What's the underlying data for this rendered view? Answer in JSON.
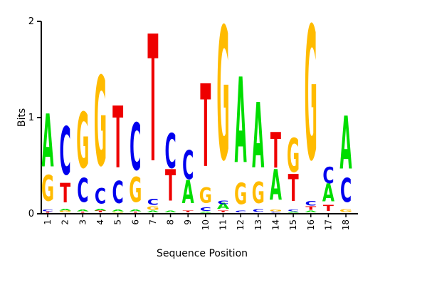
{
  "chart_data": {
    "type": "sequence-logo",
    "xlabel": "Sequence Position",
    "ylabel": "Bits",
    "ylim": [
      0,
      2
    ],
    "yticks": [
      0,
      1,
      2
    ],
    "positions": [
      "1",
      "2",
      "3",
      "4",
      "5",
      "6",
      "7",
      "8",
      "9",
      "10",
      "11",
      "12",
      "13",
      "14",
      "15",
      "16",
      "17",
      "18"
    ],
    "colors": {
      "A": "#00dd00",
      "C": "#0000ee",
      "G": "#ffbb00",
      "T": "#ee0000"
    },
    "stacks": [
      [
        {
          "l": "T",
          "v": 0.01
        },
        {
          "l": "C",
          "v": 0.02
        },
        {
          "l": "G",
          "v": 0.27
        },
        {
          "l": "A",
          "v": 0.55
        }
      ],
      [
        {
          "l": "G",
          "v": 0.02
        },
        {
          "l": "A",
          "v": 0.02
        },
        {
          "l": "T",
          "v": 0.2
        },
        {
          "l": "C",
          "v": 0.5
        }
      ],
      [
        {
          "l": "T",
          "v": 0.01
        },
        {
          "l": "A",
          "v": 0.02
        },
        {
          "l": "C",
          "v": 0.25
        },
        {
          "l": "G",
          "v": 0.58
        }
      ],
      [
        {
          "l": "T",
          "v": 0.02
        },
        {
          "l": "A",
          "v": 0.02
        },
        {
          "l": "C",
          "v": 0.16
        },
        {
          "l": "G",
          "v": 0.93
        }
      ],
      [
        {
          "l": "G",
          "v": 0.01
        },
        {
          "l": "A",
          "v": 0.02
        },
        {
          "l": "C",
          "v": 0.23
        },
        {
          "l": "T",
          "v": 0.64
        }
      ],
      [
        {
          "l": "T",
          "v": 0.01
        },
        {
          "l": "A",
          "v": 0.02
        },
        {
          "l": "G",
          "v": 0.26
        },
        {
          "l": "C",
          "v": 0.49
        }
      ],
      [
        {
          "l": "A",
          "v": 0.02
        },
        {
          "l": "G",
          "v": 0.04
        },
        {
          "l": "C",
          "v": 0.06
        },
        {
          "l": "T",
          "v": 1.32
        }
      ],
      [
        {
          "l": "A",
          "v": 0.02
        },
        {
          "l": "T",
          "v": 0.33
        },
        {
          "l": "C",
          "v": 0.36
        }
      ],
      [
        {
          "l": "T",
          "v": 0.02
        },
        {
          "l": "A",
          "v": 0.24
        },
        {
          "l": "C",
          "v": 0.3
        }
      ],
      [
        {
          "l": "A",
          "v": 0.01
        },
        {
          "l": "C",
          "v": 0.04
        },
        {
          "l": "G",
          "v": 0.16
        },
        {
          "l": "T",
          "v": 0.86
        }
      ],
      [
        {
          "l": "T",
          "v": 0.02
        },
        {
          "l": "A",
          "v": 0.06
        },
        {
          "l": "C",
          "v": 0.04
        },
        {
          "l": "G",
          "v": 1.38
        }
      ],
      [
        {
          "l": "C",
          "v": 0.02
        },
        {
          "l": "G",
          "v": 0.22
        },
        {
          "l": "A",
          "v": 0.89
        }
      ],
      [
        {
          "l": "C",
          "v": 0.03
        },
        {
          "l": "G",
          "v": 0.22
        },
        {
          "l": "A",
          "v": 0.68
        }
      ],
      [
        {
          "l": "C",
          "v": 0.01
        },
        {
          "l": "G",
          "v": 0.02
        },
        {
          "l": "A",
          "v": 0.32
        },
        {
          "l": "T",
          "v": 0.37
        }
      ],
      [
        {
          "l": "A",
          "v": 0.01
        },
        {
          "l": "C",
          "v": 0.02
        },
        {
          "l": "T",
          "v": 0.28
        },
        {
          "l": "G",
          "v": 0.35
        }
      ],
      [
        {
          "l": "A",
          "v": 0.02
        },
        {
          "l": "T",
          "v": 0.04
        },
        {
          "l": "C",
          "v": 0.05
        },
        {
          "l": "G",
          "v": 1.39
        }
      ],
      [
        {
          "l": "T",
          "v": 0.06
        },
        {
          "l": "A",
          "v": 0.19
        },
        {
          "l": "C",
          "v": 0.17
        }
      ],
      [
        {
          "l": "G",
          "v": 0.03
        },
        {
          "l": "C",
          "v": 0.25
        },
        {
          "l": "A",
          "v": 0.55
        }
      ]
    ]
  }
}
